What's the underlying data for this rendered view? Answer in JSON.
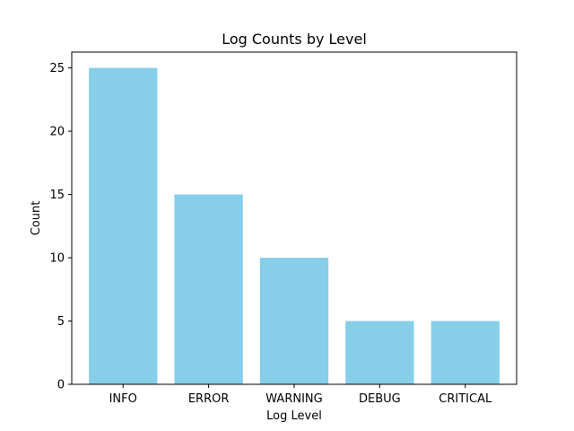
{
  "chart_data": {
    "type": "bar",
    "title": "Log Counts by Level",
    "xlabel": "Log Level",
    "ylabel": "Count",
    "categories": [
      "INFO",
      "ERROR",
      "WARNING",
      "DEBUG",
      "CRITICAL"
    ],
    "values": [
      25,
      15,
      10,
      5,
      5
    ],
    "ylim": [
      0,
      26.25
    ],
    "yticks": [
      0,
      5,
      10,
      15,
      20,
      25
    ],
    "bar_color": "#87ceeb",
    "grid": false,
    "legend": "none"
  }
}
